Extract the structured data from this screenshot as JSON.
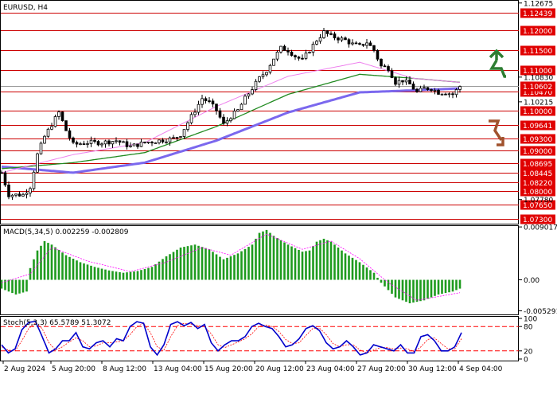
{
  "chart_title": "EURUSD, H4",
  "colors": {
    "bull": "#000000",
    "bear": "#000000",
    "ma_slow": "#7b68ee",
    "ma_mid": "#228b22",
    "ma_fast": "#ee82ee",
    "level_line": "#cc0000",
    "level_box": "#e00000",
    "current_box": "#e00000",
    "macd_hist": "#1e9b1e",
    "macd_signal": "#ff00ff",
    "stoch_main": "#0000cc",
    "stoch_signal": "#ff0000",
    "arrow_up": "#2e7d32",
    "arrow_down": "#a0522d",
    "grid_border": "#000000"
  },
  "icons": {
    "up_arrow": "green-up-zigzag-arrow-icon",
    "down_arrow": "brown-down-zigzag-arrow-icon"
  },
  "price_axis": {
    "range": [
      1.0718,
      1.1275
    ],
    "plain_ticks": [
      {
        "value": 1.12675,
        "label": "1.12675"
      },
      {
        "value": 1.1083,
        "label": "1.10830"
      },
      {
        "value": 1.10215,
        "label": "1.10215"
      },
      {
        "value": 1.0778,
        "label": "1.07780"
      }
    ],
    "levels": [
      {
        "value": 1.12439,
        "label": "1.12439"
      },
      {
        "value": 1.12,
        "label": "1.12000"
      },
      {
        "value": 1.115,
        "label": "1.11500"
      },
      {
        "value": 1.11,
        "label": "1.11000"
      },
      {
        "value": 1.1047,
        "label": "1.10470"
      },
      {
        "value": 1.1,
        "label": "1.10000"
      },
      {
        "value": 1.09641,
        "label": "1.09641"
      },
      {
        "value": 1.093,
        "label": "1.09300"
      },
      {
        "value": 1.09,
        "label": "1.09000"
      },
      {
        "value": 1.08695,
        "label": "1.08695"
      },
      {
        "value": 1.08445,
        "label": "1.08445"
      },
      {
        "value": 1.0822,
        "label": "1.08220"
      },
      {
        "value": 1.08,
        "label": "1.08000"
      },
      {
        "value": 1.0765,
        "label": "1.07650"
      },
      {
        "value": 1.073,
        "label": "1.07300"
      }
    ],
    "current": {
      "value": 1.106,
      "label": "1.10602"
    }
  },
  "time_axis": {
    "labels": [
      "2 Aug 2024",
      "5 Aug 20:00",
      "8 Aug 12:00",
      "13 Aug 04:00",
      "15 Aug 20:00",
      "20 Aug 12:00",
      "23 Aug 04:00",
      "27 Aug 20:00",
      "30 Aug 12:00",
      "4 Sep 04:00"
    ]
  },
  "macd": {
    "label": "MACD(5,34,5) 0.002259 -0.002809",
    "range": [
      -0.0059,
      0.0093
    ],
    "ticks": [
      {
        "value": 0.009017,
        "label": "0.009017"
      },
      {
        "value": 0.0,
        "label": "0.00"
      },
      {
        "value": -0.005291,
        "label": "-0.005291"
      }
    ]
  },
  "stoch": {
    "label": "Stoch(5,3,3) 65.5789 51.3072",
    "range": [
      0,
      100
    ],
    "levels": [
      20,
      80
    ],
    "ticks": [
      {
        "value": 100,
        "label": "100"
      },
      {
        "value": 80,
        "label": "80"
      },
      {
        "value": 20,
        "label": "20"
      },
      {
        "value": 0,
        "label": "0"
      }
    ]
  },
  "chart_data": {
    "type": "candlestick",
    "symbol": "EURUSD",
    "timeframe": "H4",
    "y_range": [
      1.0718,
      1.1275
    ],
    "price_path": [
      [
        0,
        1.0845
      ],
      [
        2,
        1.079
      ],
      [
        6,
        1.079
      ],
      [
        8,
        1.081
      ],
      [
        10,
        1.089
      ],
      [
        12,
        1.0935
      ],
      [
        14,
        1.0965
      ],
      [
        16,
        1.0995
      ],
      [
        18,
        1.095
      ],
      [
        20,
        1.0915
      ],
      [
        24,
        1.092
      ],
      [
        28,
        1.092
      ],
      [
        32,
        1.0925
      ],
      [
        36,
        1.091
      ],
      [
        40,
        1.092
      ],
      [
        44,
        1.0925
      ],
      [
        48,
        1.093
      ],
      [
        50,
        1.094
      ],
      [
        52,
        1.097
      ],
      [
        54,
        1.1
      ],
      [
        56,
        1.103
      ],
      [
        58,
        1.102
      ],
      [
        60,
        1.1
      ],
      [
        62,
        1.0965
      ],
      [
        64,
        1.0985
      ],
      [
        66,
        1.1
      ],
      [
        68,
        1.103
      ],
      [
        70,
        1.1055
      ],
      [
        72,
        1.108
      ],
      [
        74,
        1.11
      ],
      [
        76,
        1.113
      ],
      [
        78,
        1.1155
      ],
      [
        80,
        1.115
      ],
      [
        82,
        1.1135
      ],
      [
        84,
        1.1125
      ],
      [
        86,
        1.115
      ],
      [
        88,
        1.1175
      ],
      [
        90,
        1.1195
      ],
      [
        92,
        1.1185
      ],
      [
        94,
        1.118
      ],
      [
        96,
        1.1175
      ],
      [
        98,
        1.1165
      ],
      [
        100,
        1.116
      ],
      [
        102,
        1.117
      ],
      [
        104,
        1.115
      ],
      [
        106,
        1.111
      ],
      [
        108,
        1.1105
      ],
      [
        110,
        1.107
      ],
      [
        112,
        1.1075
      ],
      [
        114,
        1.1065
      ],
      [
        116,
        1.1045
      ],
      [
        118,
        1.1055
      ],
      [
        120,
        1.1055
      ],
      [
        122,
        1.1045
      ],
      [
        124,
        1.1045
      ],
      [
        126,
        1.104
      ],
      [
        128,
        1.106
      ]
    ],
    "ma_slow": [
      [
        0,
        1.086
      ],
      [
        20,
        1.0845
      ],
      [
        40,
        1.087
      ],
      [
        60,
        1.0925
      ],
      [
        80,
        1.0995
      ],
      [
        100,
        1.1045
      ],
      [
        115,
        1.105
      ],
      [
        128,
        1.1055
      ]
    ],
    "ma_mid": [
      [
        0,
        1.0855
      ],
      [
        20,
        1.087
      ],
      [
        40,
        1.0895
      ],
      [
        60,
        1.096
      ],
      [
        80,
        1.104
      ],
      [
        100,
        1.109
      ],
      [
        115,
        1.108
      ],
      [
        128,
        1.107
      ]
    ],
    "ma_fast": [
      [
        0,
        1.0845
      ],
      [
        20,
        1.089
      ],
      [
        40,
        1.092
      ],
      [
        60,
        1.101
      ],
      [
        80,
        1.1085
      ],
      [
        100,
        1.112
      ],
      [
        115,
        1.108
      ],
      [
        128,
        1.107
      ]
    ],
    "macd_hist": [
      [
        0,
        -0.0015
      ],
      [
        4,
        -0.0025
      ],
      [
        7,
        -0.002
      ],
      [
        8,
        0.002
      ],
      [
        10,
        0.005
      ],
      [
        12,
        0.0066
      ],
      [
        14,
        0.006
      ],
      [
        18,
        0.0042
      ],
      [
        22,
        0.003
      ],
      [
        26,
        0.0022
      ],
      [
        30,
        0.0016
      ],
      [
        34,
        0.0012
      ],
      [
        38,
        0.0015
      ],
      [
        42,
        0.0022
      ],
      [
        46,
        0.004
      ],
      [
        50,
        0.0055
      ],
      [
        54,
        0.006
      ],
      [
        58,
        0.0052
      ],
      [
        62,
        0.0035
      ],
      [
        66,
        0.0045
      ],
      [
        70,
        0.006
      ],
      [
        72,
        0.008
      ],
      [
        74,
        0.0085
      ],
      [
        76,
        0.0075
      ],
      [
        80,
        0.006
      ],
      [
        84,
        0.0048
      ],
      [
        86,
        0.005
      ],
      [
        88,
        0.0065
      ],
      [
        90,
        0.007
      ],
      [
        92,
        0.0065
      ],
      [
        96,
        0.0045
      ],
      [
        100,
        0.003
      ],
      [
        104,
        0.0012
      ],
      [
        106,
        -0.0005
      ],
      [
        110,
        -0.003
      ],
      [
        114,
        -0.004
      ],
      [
        118,
        -0.0035
      ],
      [
        122,
        -0.0025
      ],
      [
        126,
        -0.002
      ],
      [
        128,
        -0.0015
      ]
    ],
    "macd_signal": [
      [
        0,
        -0.0005
      ],
      [
        8,
        0.001
      ],
      [
        14,
        0.0055
      ],
      [
        24,
        0.0032
      ],
      [
        36,
        0.0014
      ],
      [
        46,
        0.003
      ],
      [
        56,
        0.0055
      ],
      [
        64,
        0.0042
      ],
      [
        74,
        0.0078
      ],
      [
        84,
        0.0052
      ],
      [
        92,
        0.0066
      ],
      [
        100,
        0.0036
      ],
      [
        108,
        -0.0005
      ],
      [
        116,
        -0.0035
      ],
      [
        128,
        -0.0022
      ]
    ],
    "stoch_main": [
      [
        0,
        35
      ],
      [
        2,
        15
      ],
      [
        4,
        25
      ],
      [
        6,
        72
      ],
      [
        8,
        90
      ],
      [
        10,
        93
      ],
      [
        12,
        55
      ],
      [
        14,
        15
      ],
      [
        16,
        25
      ],
      [
        18,
        45
      ],
      [
        20,
        45
      ],
      [
        22,
        65
      ],
      [
        24,
        30
      ],
      [
        26,
        25
      ],
      [
        28,
        40
      ],
      [
        30,
        45
      ],
      [
        32,
        30
      ],
      [
        34,
        50
      ],
      [
        36,
        45
      ],
      [
        38,
        80
      ],
      [
        40,
        92
      ],
      [
        42,
        88
      ],
      [
        44,
        30
      ],
      [
        46,
        10
      ],
      [
        48,
        35
      ],
      [
        50,
        85
      ],
      [
        52,
        92
      ],
      [
        54,
        82
      ],
      [
        56,
        90
      ],
      [
        58,
        75
      ],
      [
        60,
        85
      ],
      [
        62,
        40
      ],
      [
        64,
        20
      ],
      [
        66,
        35
      ],
      [
        68,
        45
      ],
      [
        70,
        45
      ],
      [
        72,
        55
      ],
      [
        74,
        80
      ],
      [
        76,
        88
      ],
      [
        78,
        80
      ],
      [
        80,
        75
      ],
      [
        82,
        55
      ],
      [
        84,
        30
      ],
      [
        86,
        35
      ],
      [
        88,
        50
      ],
      [
        90,
        75
      ],
      [
        92,
        82
      ],
      [
        94,
        70
      ],
      [
        96,
        40
      ],
      [
        98,
        25
      ],
      [
        100,
        30
      ],
      [
        102,
        45
      ],
      [
        104,
        30
      ],
      [
        106,
        10
      ],
      [
        108,
        15
      ],
      [
        110,
        35
      ],
      [
        112,
        30
      ],
      [
        114,
        25
      ],
      [
        116,
        20
      ],
      [
        118,
        35
      ],
      [
        120,
        15
      ],
      [
        122,
        15
      ],
      [
        124,
        55
      ],
      [
        126,
        60
      ],
      [
        128,
        45
      ],
      [
        130,
        20
      ],
      [
        132,
        20
      ],
      [
        134,
        30
      ],
      [
        136,
        65
      ]
    ],
    "stoch_signal": [
      [
        0,
        30
      ],
      [
        2,
        22
      ],
      [
        4,
        20
      ],
      [
        6,
        45
      ],
      [
        8,
        75
      ],
      [
        10,
        88
      ],
      [
        12,
        75
      ],
      [
        14,
        40
      ],
      [
        16,
        22
      ],
      [
        18,
        30
      ],
      [
        20,
        42
      ],
      [
        22,
        52
      ],
      [
        24,
        45
      ],
      [
        26,
        30
      ],
      [
        28,
        32
      ],
      [
        30,
        40
      ],
      [
        32,
        40
      ],
      [
        34,
        42
      ],
      [
        36,
        45
      ],
      [
        38,
        60
      ],
      [
        40,
        80
      ],
      [
        42,
        88
      ],
      [
        44,
        65
      ],
      [
        46,
        30
      ],
      [
        48,
        22
      ],
      [
        50,
        55
      ],
      [
        52,
        82
      ],
      [
        54,
        88
      ],
      [
        56,
        86
      ],
      [
        58,
        82
      ],
      [
        60,
        80
      ],
      [
        62,
        62
      ],
      [
        64,
        35
      ],
      [
        66,
        28
      ],
      [
        68,
        35
      ],
      [
        70,
        42
      ],
      [
        72,
        50
      ],
      [
        74,
        62
      ],
      [
        76,
        80
      ],
      [
        78,
        84
      ],
      [
        80,
        80
      ],
      [
        82,
        68
      ],
      [
        84,
        48
      ],
      [
        86,
        38
      ],
      [
        88,
        40
      ],
      [
        90,
        58
      ],
      [
        92,
        75
      ],
      [
        94,
        76
      ],
      [
        96,
        60
      ],
      [
        98,
        38
      ],
      [
        100,
        30
      ],
      [
        102,
        35
      ],
      [
        104,
        35
      ],
      [
        106,
        22
      ],
      [
        108,
        15
      ],
      [
        110,
        22
      ],
      [
        112,
        28
      ],
      [
        114,
        28
      ],
      [
        116,
        25
      ],
      [
        118,
        27
      ],
      [
        120,
        25
      ],
      [
        122,
        18
      ],
      [
        124,
        30
      ],
      [
        126,
        48
      ],
      [
        128,
        52
      ],
      [
        130,
        38
      ],
      [
        132,
        25
      ],
      [
        134,
        25
      ],
      [
        136,
        50
      ]
    ]
  }
}
